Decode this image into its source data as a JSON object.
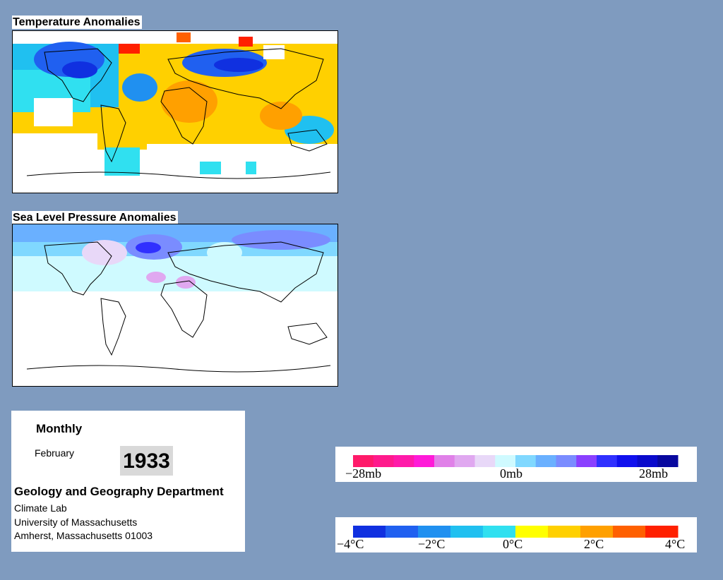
{
  "temperature_map": {
    "title": "Temperature Anomalies"
  },
  "pressure_map": {
    "title": "Sea Level Pressure Anomalies"
  },
  "info": {
    "period": "Monthly",
    "month": "February",
    "year": "1933",
    "department": "Geology and Geography Department",
    "lab": "Climate Lab",
    "university": "University of Massachusetts",
    "address": "Amherst, Massachusetts 01003"
  },
  "pressure_legend": {
    "labels": [
      "−28mb",
      "0mb",
      "28mb"
    ],
    "colors": [
      "#ff1a6a",
      "#ff1a8c",
      "#ff1aa9",
      "#ff1ad8",
      "#e080e8",
      "#e0a8f0",
      "#e8d8f8",
      "#cffaff",
      "#80d8ff",
      "#6ab0ff",
      "#7a8cff",
      "#8a40ff",
      "#3030ff",
      "#1010ee",
      "#0a0acc",
      "#08089f"
    ]
  },
  "temperature_legend": {
    "labels": [
      "−4°C",
      "−2°C",
      "0°C",
      "2°C",
      "4°C"
    ],
    "colors": [
      "#1030e0",
      "#2060f0",
      "#2090f0",
      "#20c0f0",
      "#30e0f0",
      "#ffff00",
      "#ffd000",
      "#ffa000",
      "#ff6000",
      "#ff2000"
    ]
  }
}
